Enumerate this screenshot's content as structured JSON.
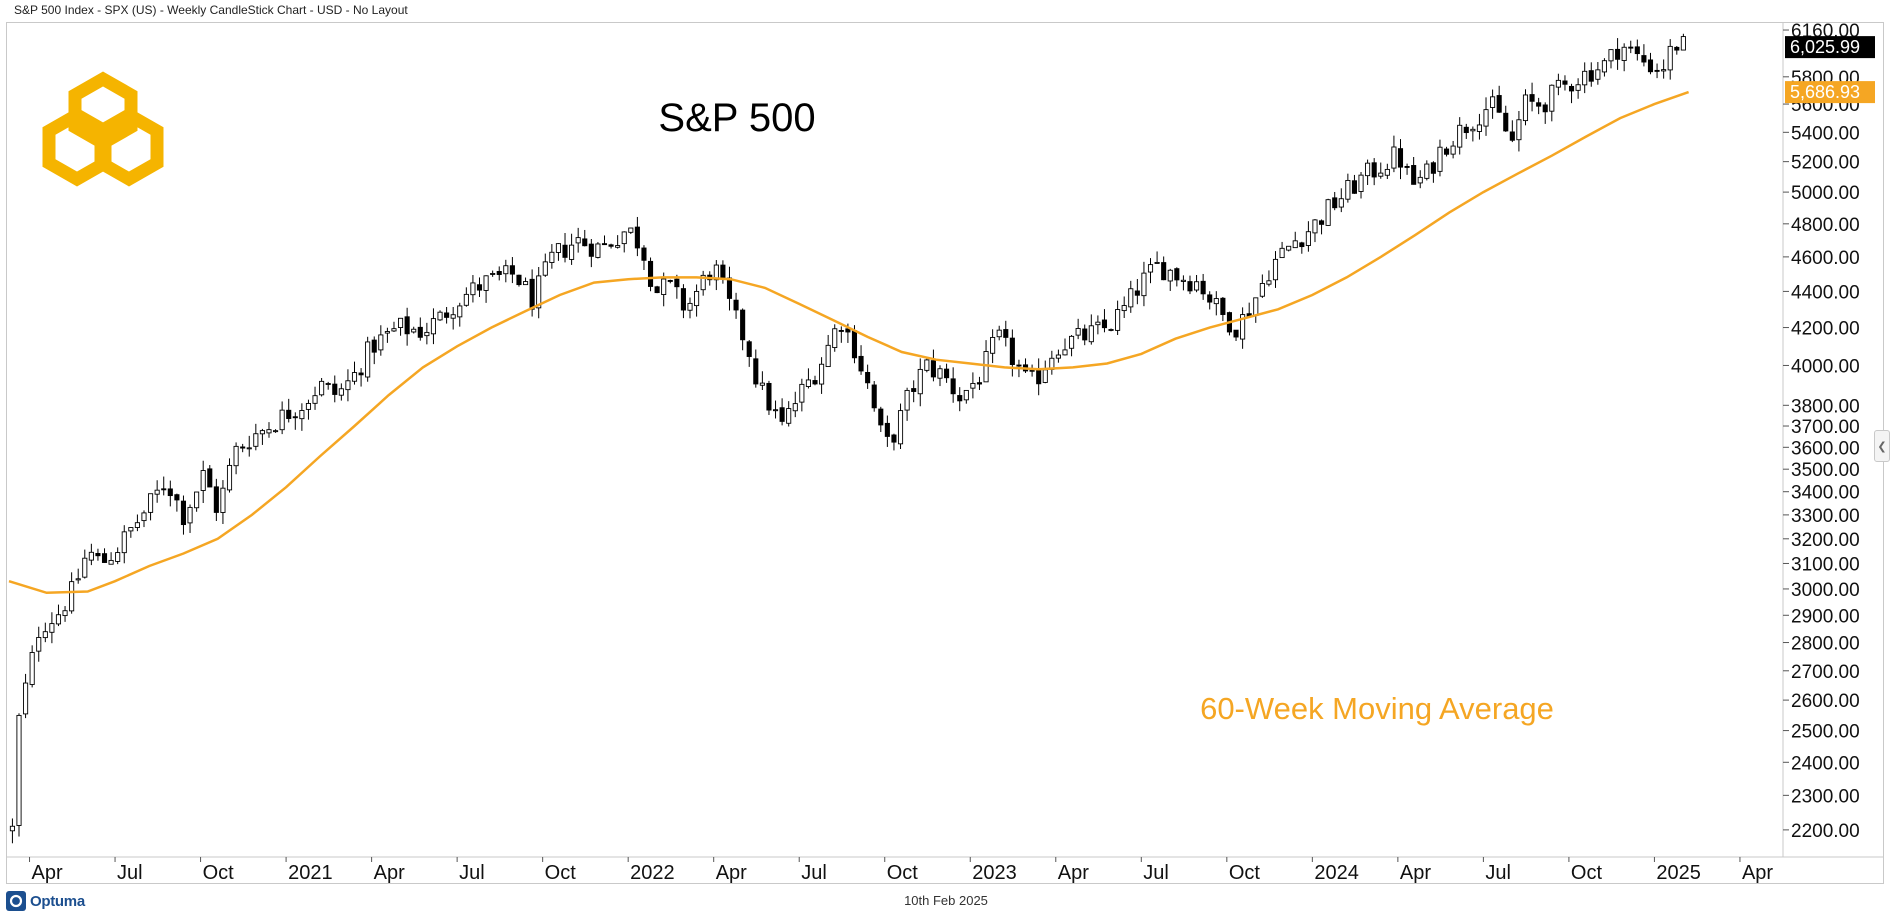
{
  "header": {
    "title": "S&P 500 Index - SPX (US) - Weekly CandleStick Chart - USD - No Layout"
  },
  "footer": {
    "date": "10th Feb 2025",
    "brand": "Optuma"
  },
  "colors": {
    "moving_average": "#f5a623",
    "logo": "#f5b400",
    "candle_up_fill": "#ffffff",
    "candle_down_fill": "#000000",
    "price_tag_bg": "#000000",
    "ma_tag_bg": "#f5a623"
  },
  "icons": {
    "logo": "hexagon-chain-icon",
    "brand": "optuma-logo-icon",
    "collapse": "chevron-left-icon"
  },
  "chart_data": {
    "type": "candlestick",
    "title": "S&P 500",
    "xlabel": "",
    "ylabel": "",
    "y_scale": "log",
    "ylim": [
      2130,
      6200
    ],
    "xlim": [
      2020.19,
      2025.37
    ],
    "grid": false,
    "y_ticks": [
      2200,
      2300,
      2400,
      2500,
      2600,
      2700,
      2800,
      2900,
      3000,
      3100,
      3200,
      3300,
      3400,
      3500,
      3600,
      3700,
      3800,
      4000,
      4200,
      4400,
      4600,
      4800,
      5000,
      5200,
      5400,
      5600,
      5800,
      6160
    ],
    "y_tick_labels": [
      "2200.00",
      "2300.00",
      "2400.00",
      "2500.00",
      "2600.00",
      "2700.00",
      "2800.00",
      "2900.00",
      "3000.00",
      "3100.00",
      "3200.00",
      "3300.00",
      "3400.00",
      "3500.00",
      "3600.00",
      "3700.00",
      "3800.00",
      "4000.00",
      "4200.00",
      "4400.00",
      "4600.00",
      "4800.00",
      "5000.00",
      "5200.00",
      "5400.00",
      "5600.00",
      "5800.00",
      "6160.00"
    ],
    "x_ticks": [
      {
        "label": "Apr",
        "x": 2020.25
      },
      {
        "label": "Jul",
        "x": 2020.5
      },
      {
        "label": "Oct",
        "x": 2020.75
      },
      {
        "label": "2021",
        "x": 2021.0
      },
      {
        "label": "Apr",
        "x": 2021.25
      },
      {
        "label": "Jul",
        "x": 2021.5
      },
      {
        "label": "Oct",
        "x": 2021.75
      },
      {
        "label": "2022",
        "x": 2022.0
      },
      {
        "label": "Apr",
        "x": 2022.25
      },
      {
        "label": "Jul",
        "x": 2022.5
      },
      {
        "label": "Oct",
        "x": 2022.75
      },
      {
        "label": "2023",
        "x": 2023.0
      },
      {
        "label": "Apr",
        "x": 2023.25
      },
      {
        "label": "Jul",
        "x": 2023.5
      },
      {
        "label": "Oct",
        "x": 2023.75
      },
      {
        "label": "2024",
        "x": 2024.0
      },
      {
        "label": "Apr",
        "x": 2024.25
      },
      {
        "label": "Jul",
        "x": 2024.5
      },
      {
        "label": "Oct",
        "x": 2024.75
      },
      {
        "label": "2025",
        "x": 2025.0
      },
      {
        "label": "Apr",
        "x": 2025.25
      }
    ],
    "close_anchors": [
      [
        2020.2,
        2200
      ],
      [
        2020.22,
        2550
      ],
      [
        2020.25,
        2700
      ],
      [
        2020.28,
        2860
      ],
      [
        2020.33,
        2900
      ],
      [
        2020.38,
        3000
      ],
      [
        2020.42,
        3150
      ],
      [
        2020.46,
        3100
      ],
      [
        2020.5,
        3150
      ],
      [
        2020.58,
        3300
      ],
      [
        2020.65,
        3450
      ],
      [
        2020.7,
        3300
      ],
      [
        2020.73,
        3380
      ],
      [
        2020.76,
        3480
      ],
      [
        2020.8,
        3320
      ],
      [
        2020.85,
        3580
      ],
      [
        2020.9,
        3650
      ],
      [
        2020.95,
        3700
      ],
      [
        2021.0,
        3760
      ],
      [
        2021.05,
        3810
      ],
      [
        2021.1,
        3900
      ],
      [
        2021.15,
        3850
      ],
      [
        2021.2,
        3950
      ],
      [
        2021.25,
        4100
      ],
      [
        2021.33,
        4200
      ],
      [
        2021.4,
        4180
      ],
      [
        2021.45,
        4250
      ],
      [
        2021.5,
        4350
      ],
      [
        2021.58,
        4450
      ],
      [
        2021.67,
        4500
      ],
      [
        2021.72,
        4350
      ],
      [
        2021.78,
        4600
      ],
      [
        2021.85,
        4700
      ],
      [
        2021.92,
        4650
      ],
      [
        2022.0,
        4770
      ],
      [
        2022.04,
        4660
      ],
      [
        2022.08,
        4400
      ],
      [
        2022.12,
        4430
      ],
      [
        2022.17,
        4300
      ],
      [
        2022.22,
        4460
      ],
      [
        2022.25,
        4550
      ],
      [
        2022.3,
        4300
      ],
      [
        2022.35,
        4100
      ],
      [
        2022.38,
        3900
      ],
      [
        2022.45,
        3700
      ],
      [
        2022.5,
        3850
      ],
      [
        2022.56,
        4000
      ],
      [
        2022.62,
        4250
      ],
      [
        2022.66,
        4100
      ],
      [
        2022.7,
        3900
      ],
      [
        2022.75,
        3600
      ],
      [
        2022.78,
        3670
      ],
      [
        2022.82,
        3850
      ],
      [
        2022.87,
        4000
      ],
      [
        2022.92,
        3950
      ],
      [
        2022.97,
        3840
      ],
      [
        2023.03,
        3950
      ],
      [
        2023.08,
        4150
      ],
      [
        2023.12,
        4050
      ],
      [
        2023.17,
        3900
      ],
      [
        2023.2,
        3950
      ],
      [
        2023.25,
        4100
      ],
      [
        2023.33,
        4150
      ],
      [
        2023.4,
        4200
      ],
      [
        2023.45,
        4300
      ],
      [
        2023.5,
        4450
      ],
      [
        2023.55,
        4550
      ],
      [
        2023.62,
        4480
      ],
      [
        2023.67,
        4450
      ],
      [
        2023.73,
        4280
      ],
      [
        2023.78,
        4200
      ],
      [
        2023.83,
        4350
      ],
      [
        2023.88,
        4550
      ],
      [
        2023.95,
        4700
      ],
      [
        2024.0,
        4780
      ],
      [
        2024.05,
        4900
      ],
      [
        2024.1,
        5000
      ],
      [
        2024.15,
        5100
      ],
      [
        2024.22,
        5200
      ],
      [
        2024.25,
        5250
      ],
      [
        2024.29,
        5050
      ],
      [
        2024.33,
        5100
      ],
      [
        2024.38,
        5300
      ],
      [
        2024.45,
        5450
      ],
      [
        2024.52,
        5600
      ],
      [
        2024.56,
        5450
      ],
      [
        2024.58,
        5300
      ],
      [
        2024.62,
        5600
      ],
      [
        2024.67,
        5600
      ],
      [
        2024.72,
        5700
      ],
      [
        2024.78,
        5800
      ],
      [
        2024.82,
        5850
      ],
      [
        2024.86,
        5900
      ],
      [
        2024.9,
        6050
      ],
      [
        2024.95,
        5950
      ],
      [
        2024.98,
        5900
      ],
      [
        2025.02,
        5850
      ],
      [
        2025.06,
        6050
      ],
      [
        2025.1,
        6025.99
      ]
    ],
    "series": [
      {
        "name": "S&P 500 Index weekly candles",
        "type": "candlestick",
        "last_value": "6,025.99"
      },
      {
        "name": "60-Week Moving Average",
        "type": "line",
        "last_value": "5,686.93",
        "points": [
          [
            2020.19,
            3030
          ],
          [
            2020.3,
            2985
          ],
          [
            2020.42,
            2990
          ],
          [
            2020.5,
            3030
          ],
          [
            2020.6,
            3090
          ],
          [
            2020.7,
            3140
          ],
          [
            2020.8,
            3200
          ],
          [
            2020.9,
            3300
          ],
          [
            2021.0,
            3420
          ],
          [
            2021.1,
            3560
          ],
          [
            2021.2,
            3700
          ],
          [
            2021.3,
            3850
          ],
          [
            2021.4,
            3990
          ],
          [
            2021.5,
            4100
          ],
          [
            2021.6,
            4200
          ],
          [
            2021.7,
            4290
          ],
          [
            2021.8,
            4380
          ],
          [
            2021.9,
            4450
          ],
          [
            2022.0,
            4470
          ],
          [
            2022.1,
            4480
          ],
          [
            2022.2,
            4480
          ],
          [
            2022.3,
            4470
          ],
          [
            2022.4,
            4420
          ],
          [
            2022.5,
            4330
          ],
          [
            2022.6,
            4240
          ],
          [
            2022.7,
            4150
          ],
          [
            2022.8,
            4070
          ],
          [
            2022.9,
            4030
          ],
          [
            2023.0,
            4010
          ],
          [
            2023.1,
            3990
          ],
          [
            2023.2,
            3980
          ],
          [
            2023.3,
            3990
          ],
          [
            2023.4,
            4010
          ],
          [
            2023.5,
            4060
          ],
          [
            2023.6,
            4140
          ],
          [
            2023.7,
            4200
          ],
          [
            2023.8,
            4250
          ],
          [
            2023.9,
            4300
          ],
          [
            2024.0,
            4380
          ],
          [
            2024.1,
            4480
          ],
          [
            2024.2,
            4600
          ],
          [
            2024.3,
            4730
          ],
          [
            2024.4,
            4870
          ],
          [
            2024.5,
            5000
          ],
          [
            2024.6,
            5120
          ],
          [
            2024.7,
            5240
          ],
          [
            2024.8,
            5370
          ],
          [
            2024.9,
            5500
          ],
          [
            2025.0,
            5600
          ],
          [
            2025.1,
            5686.93
          ]
        ]
      }
    ],
    "annotations": [
      {
        "text": "60-Week Moving Average",
        "color": "#f5a623"
      }
    ],
    "price_tags": [
      {
        "text": "6,025.99",
        "value": 6025.99,
        "color": "#000000"
      },
      {
        "text": "5,686.93",
        "value": 5686.93,
        "color": "#f5a623"
      }
    ]
  }
}
